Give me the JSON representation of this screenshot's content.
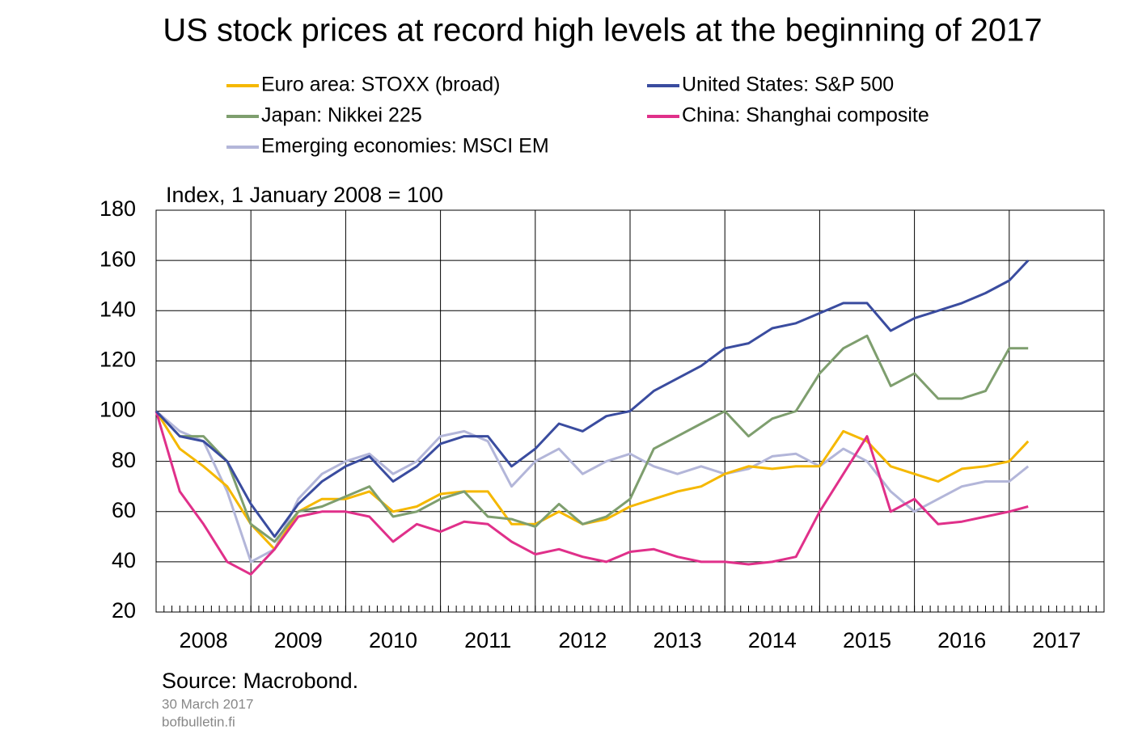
{
  "chart_data": {
    "type": "line",
    "title": "US stock prices at record high levels at the beginning of 2017",
    "y_label": "Index, 1 January 2008 = 100",
    "source": "Source: Macrobond.",
    "date": "30 March 2017",
    "site": "bofbulletin.fi",
    "x": [
      2008,
      2008.25,
      2008.5,
      2008.75,
      2009,
      2009.25,
      2009.5,
      2009.75,
      2010,
      2010.25,
      2010.5,
      2010.75,
      2011,
      2011.25,
      2011.5,
      2011.75,
      2012,
      2012.25,
      2012.5,
      2012.75,
      2013,
      2013.25,
      2013.5,
      2013.75,
      2014,
      2014.25,
      2014.5,
      2014.75,
      2015,
      2015.25,
      2015.5,
      2015.75,
      2016,
      2016.25,
      2016.5,
      2016.75,
      2017,
      2017.2
    ],
    "series": [
      {
        "name": "Euro area: STOXX (broad)",
        "color": "#f5b800",
        "values": [
          100,
          85,
          78,
          70,
          55,
          45,
          60,
          65,
          65,
          68,
          60,
          62,
          67,
          68,
          68,
          55,
          55,
          60,
          55,
          57,
          62,
          65,
          68,
          70,
          75,
          78,
          77,
          78,
          78,
          92,
          88,
          78,
          75,
          72,
          77,
          78,
          80,
          88
        ]
      },
      {
        "name": "United States: S&P 500",
        "color": "#3a4c9f",
        "values": [
          100,
          90,
          88,
          80,
          63,
          50,
          63,
          72,
          78,
          82,
          72,
          78,
          87,
          90,
          90,
          78,
          85,
          95,
          92,
          98,
          100,
          108,
          113,
          118,
          125,
          127,
          133,
          135,
          139,
          143,
          143,
          132,
          137,
          140,
          143,
          147,
          152,
          160
        ]
      },
      {
        "name": "Japan: Nikkei 225",
        "color": "#7e9e6e",
        "values": [
          100,
          90,
          90,
          80,
          55,
          48,
          60,
          62,
          66,
          70,
          58,
          60,
          65,
          68,
          58,
          57,
          54,
          63,
          55,
          58,
          65,
          85,
          90,
          95,
          100,
          90,
          97,
          100,
          115,
          125,
          130,
          110,
          115,
          105,
          105,
          108,
          125,
          125
        ]
      },
      {
        "name": "China: Shanghai composite",
        "color": "#e0308a",
        "values": [
          100,
          68,
          55,
          40,
          35,
          45,
          58,
          60,
          60,
          58,
          48,
          55,
          52,
          56,
          55,
          48,
          43,
          45,
          42,
          40,
          44,
          45,
          42,
          40,
          40,
          39,
          40,
          42,
          60,
          75,
          90,
          60,
          65,
          55,
          56,
          58,
          60,
          62
        ]
      },
      {
        "name": "Emerging economies: MSCI EM",
        "color": "#b3b6d9",
        "values": [
          100,
          92,
          88,
          68,
          40,
          45,
          65,
          75,
          80,
          83,
          75,
          80,
          90,
          92,
          88,
          70,
          80,
          85,
          75,
          80,
          83,
          78,
          75,
          78,
          75,
          77,
          82,
          83,
          78,
          85,
          80,
          68,
          60,
          65,
          70,
          72,
          72,
          78
        ]
      }
    ],
    "xlim": [
      2008,
      2018
    ],
    "xgrid": [
      2008,
      2009,
      2010,
      2011,
      2012,
      2013,
      2014,
      2015,
      2016,
      2017,
      2018
    ],
    "xticks": [
      {
        "value": 2008.5,
        "label": "2008"
      },
      {
        "value": 2009.5,
        "label": "2009"
      },
      {
        "value": 2010.5,
        "label": "2010"
      },
      {
        "value": 2011.5,
        "label": "2011"
      },
      {
        "value": 2012.5,
        "label": "2012"
      },
      {
        "value": 2013.5,
        "label": "2013"
      },
      {
        "value": 2014.5,
        "label": "2014"
      },
      {
        "value": 2015.5,
        "label": "2015"
      },
      {
        "value": 2016.5,
        "label": "2016"
      },
      {
        "value": 2017.5,
        "label": "2017"
      }
    ],
    "ylim": [
      20,
      180
    ],
    "yticks": [
      20,
      40,
      60,
      80,
      100,
      120,
      140,
      160,
      180
    ],
    "grid": true
  }
}
